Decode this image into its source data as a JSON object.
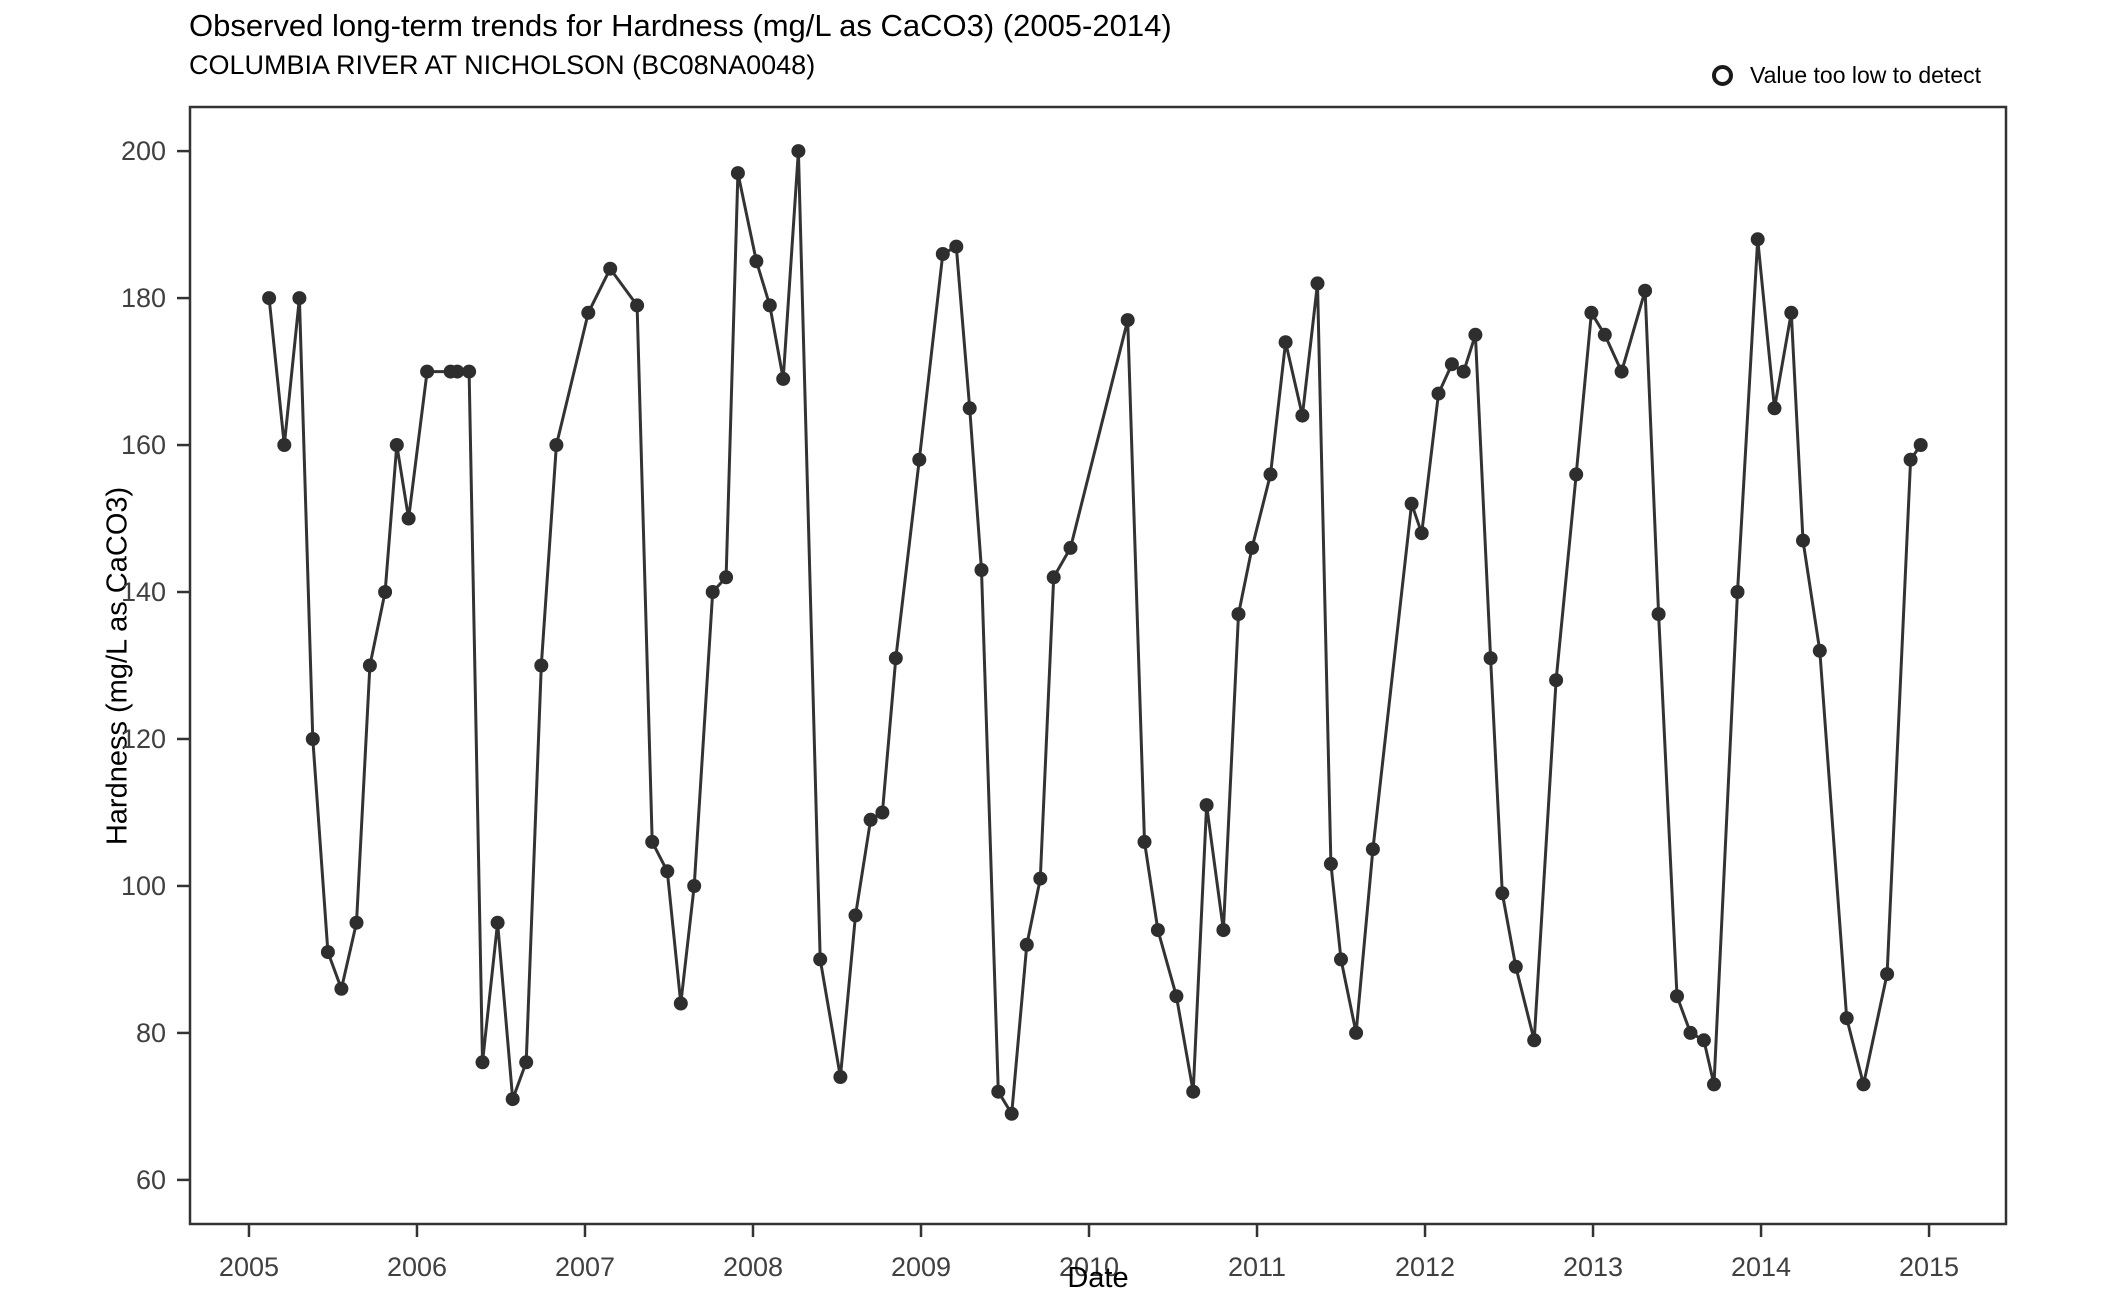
{
  "header": {
    "title": "Observed long-term trends for Hardness (mg/L as CaCO3) (2005-2014)",
    "subtitle": "COLUMBIA RIVER AT NICHOLSON (BC08NA0048)"
  },
  "legend": {
    "marker_icon": "open-circle-icon",
    "label": "Value too low to detect"
  },
  "chart_data": {
    "type": "line",
    "title": "Observed long-term trends for Hardness (mg/L as CaCO3) (2005-2014)",
    "subtitle": "COLUMBIA RIVER AT NICHOLSON (BC08NA0048)",
    "xlabel": "Date",
    "ylabel": "Hardness (mg/L as CaCO3)",
    "xlim": [
      2004.649,
      2015.458
    ],
    "ylim": [
      54,
      206
    ],
    "xticks": [
      2005,
      2006,
      2007,
      2008,
      2009,
      2010,
      2011,
      2012,
      2013,
      2014,
      2015
    ],
    "yticks": [
      60,
      80,
      100,
      120,
      140,
      160,
      180,
      200
    ],
    "grid": "off",
    "legend_position": "top-right",
    "marker_style": "filled-circle",
    "series": [
      {
        "name": "Hardness",
        "points": [
          [
            2005.12,
            180
          ],
          [
            2005.21,
            160
          ],
          [
            2005.3,
            180
          ],
          [
            2005.38,
            120
          ],
          [
            2005.47,
            91
          ],
          [
            2005.55,
            86
          ],
          [
            2005.64,
            95
          ],
          [
            2005.72,
            130
          ],
          [
            2005.81,
            140
          ],
          [
            2005.88,
            160
          ],
          [
            2005.95,
            150
          ],
          [
            2006.06,
            170
          ],
          [
            2006.2,
            170
          ],
          [
            2006.24,
            170
          ],
          [
            2006.31,
            170
          ],
          [
            2006.39,
            76
          ],
          [
            2006.48,
            95
          ],
          [
            2006.57,
            71
          ],
          [
            2006.65,
            76
          ],
          [
            2006.74,
            130
          ],
          [
            2006.83,
            160
          ],
          [
            2007.02,
            178
          ],
          [
            2007.15,
            184
          ],
          [
            2007.31,
            179
          ],
          [
            2007.4,
            106
          ],
          [
            2007.49,
            102
          ],
          [
            2007.57,
            84
          ],
          [
            2007.65,
            100
          ],
          [
            2007.76,
            140
          ],
          [
            2007.84,
            142
          ],
          [
            2007.91,
            197
          ],
          [
            2008.02,
            185
          ],
          [
            2008.1,
            179
          ],
          [
            2008.18,
            169
          ],
          [
            2008.27,
            200
          ],
          [
            2008.4,
            90
          ],
          [
            2008.52,
            74
          ],
          [
            2008.61,
            96
          ],
          [
            2008.7,
            109
          ],
          [
            2008.77,
            110
          ],
          [
            2008.85,
            131
          ],
          [
            2008.99,
            158
          ],
          [
            2009.13,
            186
          ],
          [
            2009.21,
            187
          ],
          [
            2009.29,
            165
          ],
          [
            2009.36,
            143
          ],
          [
            2009.46,
            72
          ],
          [
            2009.54,
            69
          ],
          [
            2009.63,
            92
          ],
          [
            2009.71,
            101
          ],
          [
            2009.79,
            142
          ],
          [
            2009.89,
            146
          ],
          [
            2010.23,
            177
          ],
          [
            2010.33,
            106
          ],
          [
            2010.41,
            94
          ],
          [
            2010.52,
            85
          ],
          [
            2010.62,
            72
          ],
          [
            2010.7,
            111
          ],
          [
            2010.8,
            94
          ],
          [
            2010.89,
            137
          ],
          [
            2010.97,
            146
          ],
          [
            2011.08,
            156
          ],
          [
            2011.17,
            174
          ],
          [
            2011.27,
            164
          ],
          [
            2011.36,
            182
          ],
          [
            2011.44,
            103
          ],
          [
            2011.5,
            90
          ],
          [
            2011.59,
            80
          ],
          [
            2011.69,
            105
          ],
          [
            2011.92,
            152
          ],
          [
            2011.98,
            148
          ],
          [
            2012.08,
            167
          ],
          [
            2012.16,
            171
          ],
          [
            2012.23,
            170
          ],
          [
            2012.3,
            175
          ],
          [
            2012.39,
            131
          ],
          [
            2012.46,
            99
          ],
          [
            2012.54,
            89
          ],
          [
            2012.65,
            79
          ],
          [
            2012.78,
            128
          ],
          [
            2012.9,
            156
          ],
          [
            2012.99,
            178
          ],
          [
            2013.07,
            175
          ],
          [
            2013.17,
            170
          ],
          [
            2013.31,
            181
          ],
          [
            2013.39,
            137
          ],
          [
            2013.5,
            85
          ],
          [
            2013.58,
            80
          ],
          [
            2013.66,
            79
          ],
          [
            2013.72,
            73
          ],
          [
            2013.86,
            140
          ],
          [
            2013.98,
            188
          ],
          [
            2014.08,
            165
          ],
          [
            2014.18,
            178
          ],
          [
            2014.25,
            147
          ],
          [
            2014.35,
            132
          ],
          [
            2014.51,
            82
          ],
          [
            2014.61,
            73
          ],
          [
            2014.75,
            88
          ],
          [
            2014.89,
            158
          ],
          [
            2014.95,
            160
          ]
        ]
      }
    ],
    "colors": {
      "line": "#333333",
      "point": "#2e2e2e",
      "panel_border": "#333333",
      "tick": "#333333",
      "tick_label": "#404040",
      "text": "#000000",
      "background": "#ffffff"
    }
  }
}
